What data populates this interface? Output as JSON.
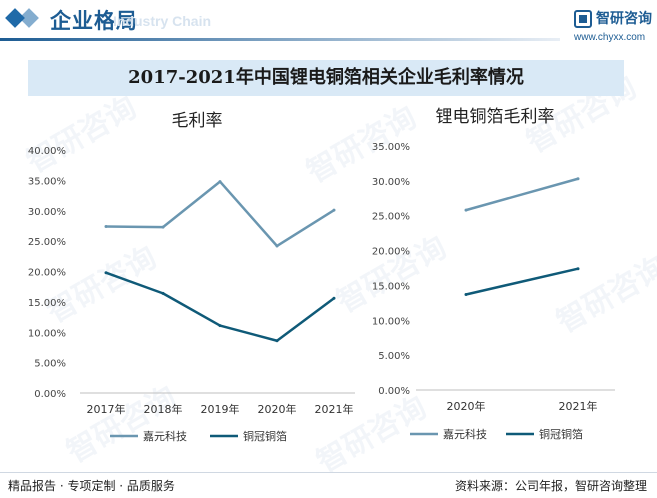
{
  "header": {
    "title": "企业格局",
    "subtitle": "Industry Chain",
    "logo_name": "智研咨询",
    "logo_url": "www.chyxx.com"
  },
  "main_title": "2017-2021年中国锂电铜箔相关企业毛利率情况",
  "footer": {
    "left": "精品报告 · 专项定制 · 品质服务",
    "right": "资料来源：公司年报，智研咨询整理"
  },
  "watermark": "智研咨询",
  "colors": {
    "series1": "#6a96b0",
    "series2": "#0f5a78",
    "accent": "#1d5c93",
    "title_bg": "#d9e9f6"
  },
  "chart_data": [
    {
      "type": "line",
      "title": "毛利率",
      "x": [
        "2017年",
        "2018年",
        "2019年",
        "2020年",
        "2021年"
      ],
      "ylim": [
        0,
        40
      ],
      "yticks": [
        "0.00%",
        "5.00%",
        "10.00%",
        "15.00%",
        "20.00%",
        "25.00%",
        "30.00%",
        "35.00%",
        "40.00%"
      ],
      "grid": false,
      "legend": "bottom",
      "series": [
        {
          "name": "嘉元科技",
          "values": [
            27.4,
            27.3,
            34.8,
            24.2,
            30.1
          ]
        },
        {
          "name": "铜冠铜箔",
          "values": [
            19.8,
            16.4,
            11.1,
            8.6,
            15.6
          ]
        }
      ]
    },
    {
      "type": "line",
      "title": "锂电铜箔毛利率",
      "x": [
        "2020年",
        "2021年"
      ],
      "ylim": [
        0,
        35
      ],
      "yticks": [
        "0.00%",
        "5.00%",
        "10.00%",
        "15.00%",
        "20.00%",
        "25.00%",
        "30.00%",
        "35.00%"
      ],
      "grid": false,
      "legend": "bottom",
      "series": [
        {
          "name": "嘉元科技",
          "values": [
            25.8,
            30.3
          ]
        },
        {
          "name": "铜冠铜箔",
          "values": [
            13.7,
            17.4
          ]
        }
      ]
    }
  ]
}
